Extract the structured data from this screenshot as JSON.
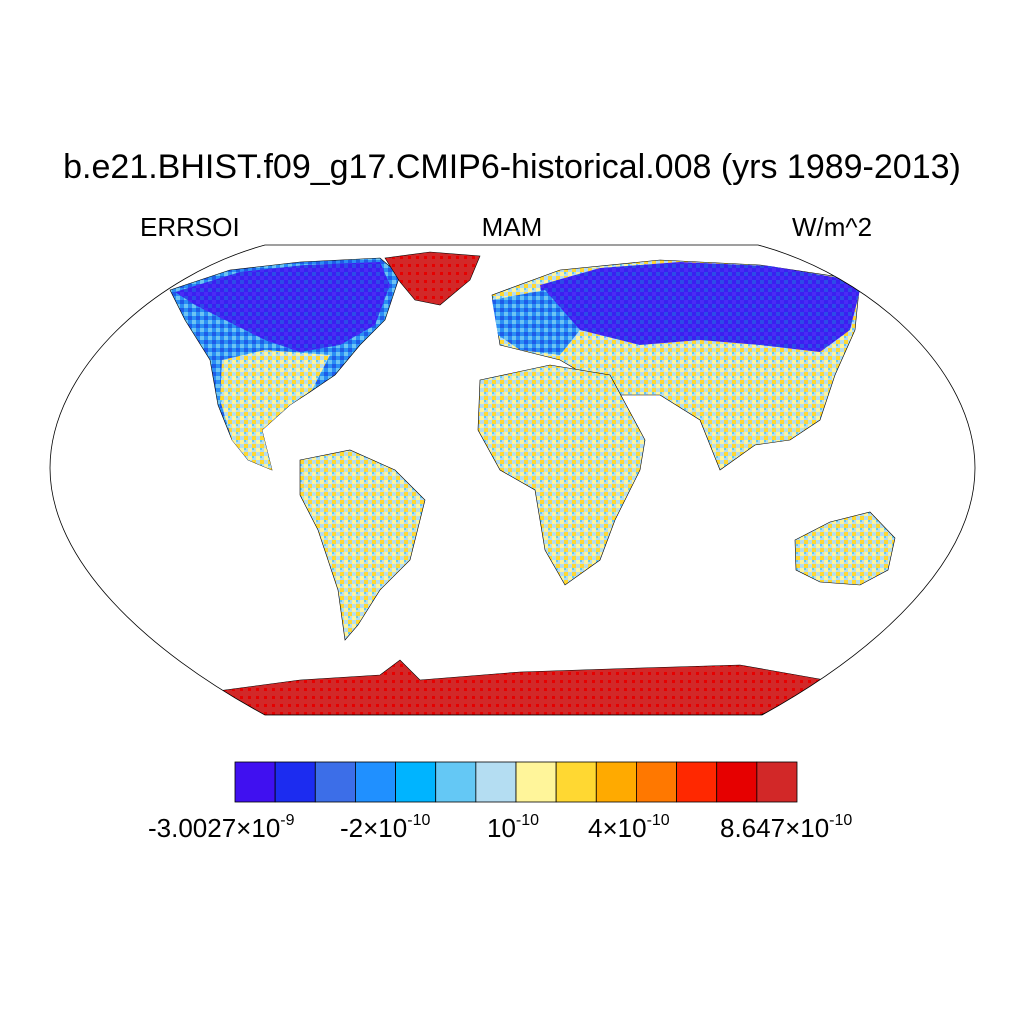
{
  "title": "b.e21.BHIST.f09_g17.CMIP6-historical.008 (yrs 1989-2013)",
  "left_label": "ERRSOI",
  "center_label": "MAM",
  "right_label": "W/m^2",
  "colorbar": {
    "colors": [
      "#4010f0",
      "#1c2cf0",
      "#3c6ee8",
      "#2090ff",
      "#00b4ff",
      "#64c8f5",
      "#b4ddf2",
      "#fff59a",
      "#ffd832",
      "#ffaa00",
      "#ff7800",
      "#ff2800",
      "#e60000",
      "#d22828"
    ],
    "labels": [
      {
        "base": "-3.0027×10",
        "exp": "-9"
      },
      {
        "base": "-2×10",
        "exp": "-10"
      },
      {
        "base": "10",
        "exp": "-10"
      },
      {
        "base": "4×10",
        "exp": "-10"
      },
      {
        "base": "8.647×10",
        "exp": "-10"
      }
    ]
  },
  "map": {
    "projection": "Robinson",
    "continents": [
      {
        "name": "North America",
        "field": "blue-north"
      },
      {
        "name": "Greenland",
        "field": "red"
      },
      {
        "name": "South America",
        "field": "mixed"
      },
      {
        "name": "Europe-Asia",
        "field": "blue-north"
      },
      {
        "name": "Africa",
        "field": "mixed"
      },
      {
        "name": "Australia",
        "field": "mixed"
      },
      {
        "name": "Antarctica",
        "field": "red"
      }
    ]
  }
}
